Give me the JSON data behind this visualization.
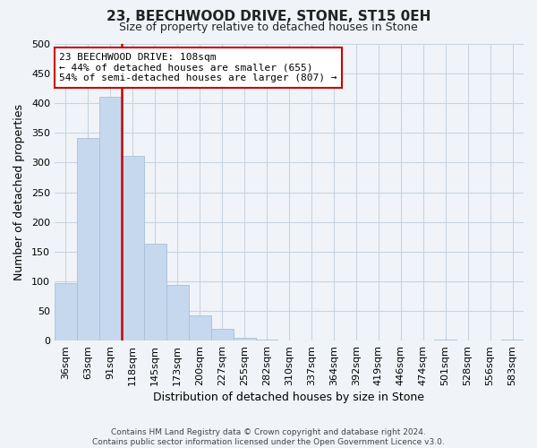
{
  "title": "23, BEECHWOOD DRIVE, STONE, ST15 0EH",
  "subtitle": "Size of property relative to detached houses in Stone",
  "xlabel": "Distribution of detached houses by size in Stone",
  "ylabel": "Number of detached properties",
  "bar_labels": [
    "36sqm",
    "63sqm",
    "91sqm",
    "118sqm",
    "145sqm",
    "173sqm",
    "200sqm",
    "227sqm",
    "255sqm",
    "282sqm",
    "310sqm",
    "337sqm",
    "364sqm",
    "392sqm",
    "419sqm",
    "446sqm",
    "474sqm",
    "501sqm",
    "528sqm",
    "556sqm",
    "583sqm"
  ],
  "bar_values": [
    97,
    341,
    411,
    311,
    163,
    93,
    42,
    19,
    5,
    2,
    0,
    0,
    0,
    0,
    0,
    0,
    0,
    2,
    0,
    0,
    2
  ],
  "bar_color": "#c5d8ed",
  "bar_edge_color": "#aabfd6",
  "background_color": "#f0f4f9",
  "grid_color": "#c8d4e0",
  "vline_x_index": 3,
  "vline_color": "#cc0000",
  "annotation_line1": "23 BEECHWOOD DRIVE: 108sqm",
  "annotation_line2": "← 44% of detached houses are smaller (655)",
  "annotation_line3": "54% of semi-detached houses are larger (807) →",
  "annotation_box_color": "#ffffff",
  "annotation_box_edge": "#cc0000",
  "ylim": [
    0,
    500
  ],
  "yticks": [
    0,
    50,
    100,
    150,
    200,
    250,
    300,
    350,
    400,
    450,
    500
  ],
  "footer_line1": "Contains HM Land Registry data © Crown copyright and database right 2024.",
  "footer_line2": "Contains public sector information licensed under the Open Government Licence v3.0."
}
